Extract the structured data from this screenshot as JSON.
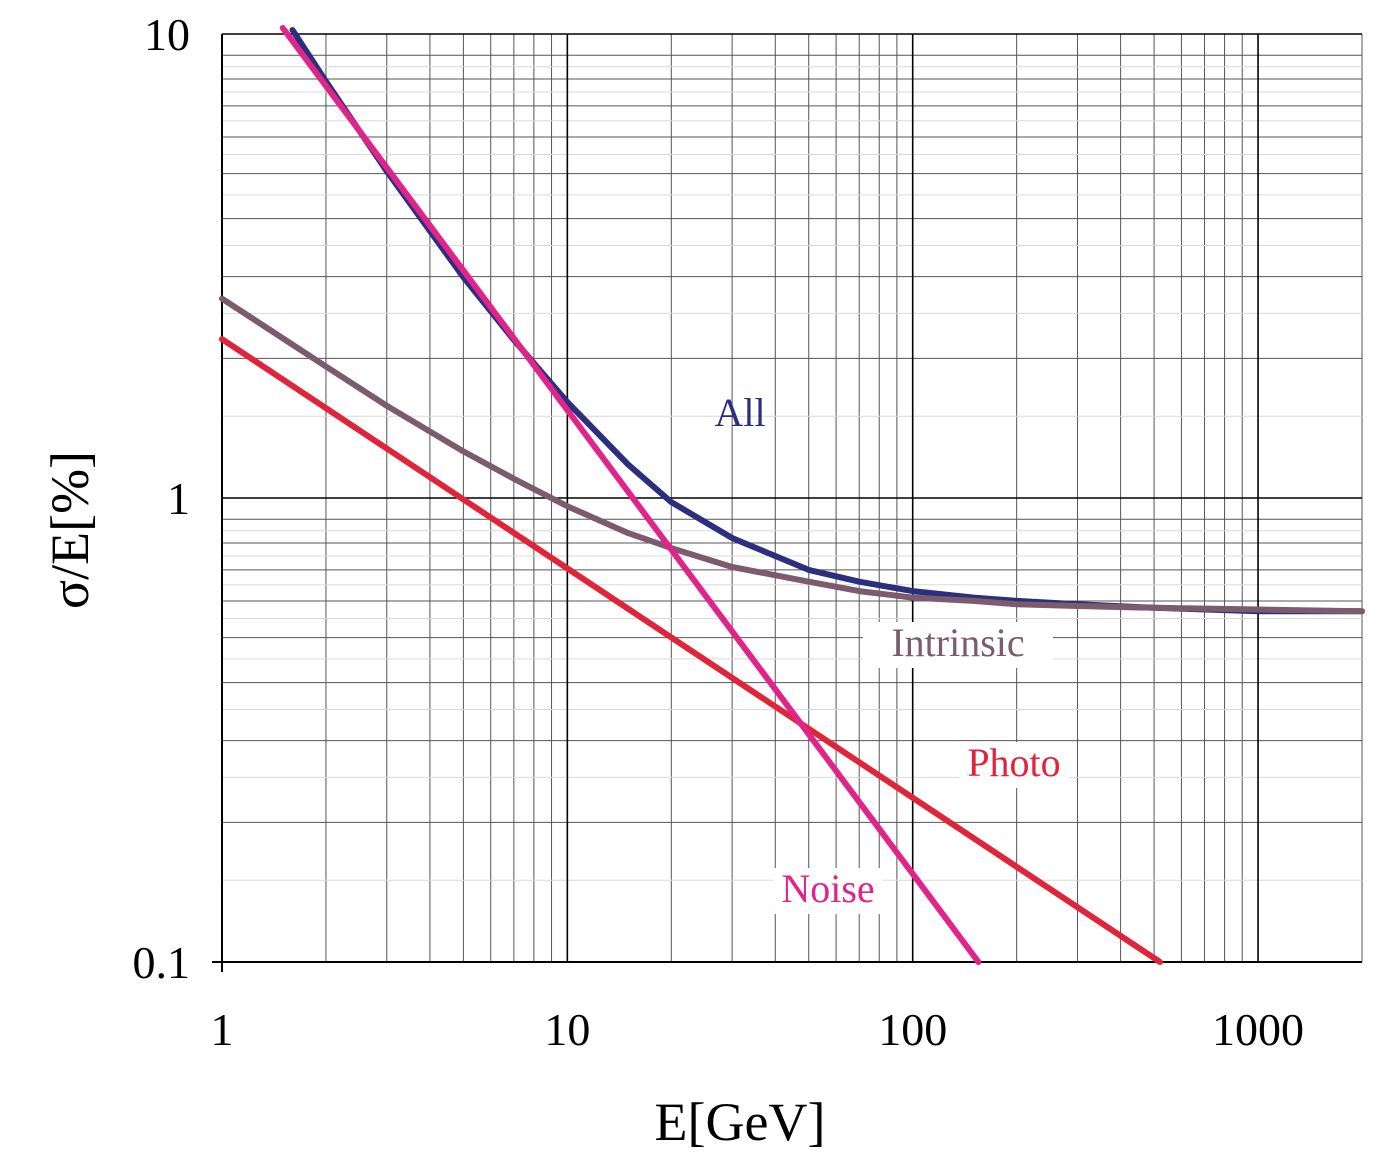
{
  "chart_data": {
    "type": "line",
    "xlabel": "E[GeV]",
    "ylabel": "σ/E[%]",
    "xscale": "log",
    "yscale": "log",
    "xlim": [
      1,
      2000
    ],
    "ylim": [
      0.1,
      10
    ],
    "grid": true,
    "x_ticks": [
      "1",
      "10",
      "100",
      "1000"
    ],
    "y_ticks": [
      "0.1",
      "1",
      "10"
    ],
    "series": [
      {
        "name": "All",
        "color": "#2b2f7e",
        "x": [
          1.6,
          2,
          3,
          5,
          7,
          10,
          15,
          20,
          30,
          50,
          70,
          100,
          150,
          200,
          300,
          500,
          1000,
          2000
        ],
        "y": [
          10.2,
          7.9,
          5.06,
          2.99,
          2.19,
          1.61,
          1.18,
          0.98,
          0.82,
          0.7,
          0.66,
          0.63,
          0.61,
          0.6,
          0.59,
          0.58,
          0.57,
          0.57
        ]
      },
      {
        "name": "Intrinsic",
        "color": "#7d5b6e",
        "x": [
          1,
          2,
          3,
          5,
          7,
          10,
          15,
          20,
          30,
          50,
          70,
          100,
          150,
          200,
          300,
          500,
          1000,
          2000
        ],
        "y": [
          2.69,
          1.92,
          1.58,
          1.26,
          1.1,
          0.96,
          0.84,
          0.78,
          0.71,
          0.66,
          0.63,
          0.61,
          0.6,
          0.59,
          0.585,
          0.58,
          0.575,
          0.57
        ]
      },
      {
        "name": "Photo",
        "color": "#e0243a",
        "x": [
          1,
          520
        ],
        "y": [
          2.2,
          0.1
        ]
      },
      {
        "name": "Noise",
        "color": "#e0248a",
        "x": [
          1.5,
          155
        ],
        "y": [
          10.3,
          0.1
        ]
      }
    ],
    "annotations": [
      {
        "text": "All",
        "series": "All"
      },
      {
        "text": "Intrinsic",
        "series": "Intrinsic"
      },
      {
        "text": "Photo",
        "series": "Photo"
      },
      {
        "text": "Noise",
        "series": "Noise"
      }
    ]
  }
}
